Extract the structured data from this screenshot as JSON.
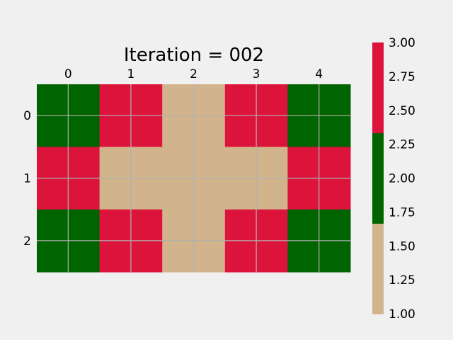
{
  "chart_data": {
    "type": "heatmap",
    "title": "Iteration = 002",
    "xlabel": "",
    "ylabel": "",
    "x_ticks": [
      "0",
      "1",
      "2",
      "3",
      "4"
    ],
    "y_ticks": [
      "0",
      "1",
      "2"
    ],
    "values": [
      [
        2,
        3,
        1,
        3,
        2
      ],
      [
        3,
        1,
        1,
        1,
        3
      ],
      [
        2,
        3,
        1,
        3,
        2
      ]
    ],
    "color_map": {
      "1": "#d2b48c",
      "2": "#006400",
      "3": "#dc143c"
    },
    "colorbar": {
      "range": [
        1.0,
        3.0
      ],
      "tick_labels": [
        "1.00",
        "1.25",
        "1.50",
        "1.75",
        "2.00",
        "2.25",
        "2.50",
        "2.75",
        "3.00"
      ],
      "bands": [
        {
          "from": 1.0,
          "to": 1.6667,
          "color": "#d2b48c"
        },
        {
          "from": 1.6667,
          "to": 2.3333,
          "color": "#006400"
        },
        {
          "from": 2.3333,
          "to": 3.0,
          "color": "#dc143c"
        }
      ]
    },
    "grid": true,
    "grid_color": "#b0b0b0",
    "background": "#f0f0f0",
    "x_tick_position": "top"
  }
}
